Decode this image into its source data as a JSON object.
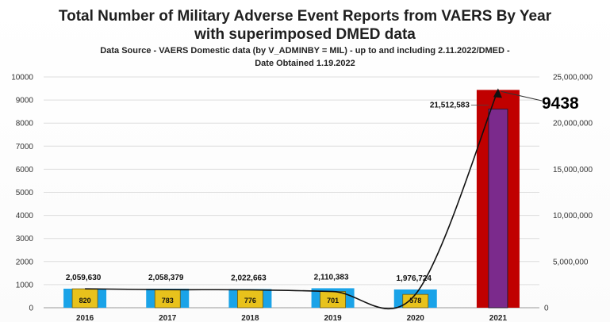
{
  "header": {
    "title_line1": "Total Number of Military Adverse Event Reports from VAERS By Year",
    "title_line2": "with superimposed DMED data",
    "subtitle_line1": "Data Source - VAERS Domestic data (by V_ADMINBY = MIL) - up to and including 2.11.2022/DMED -",
    "subtitle_line2": "Date Obtained 1.19.2022"
  },
  "colors": {
    "vaers_bar": "#1aa3e8",
    "vaers_label_box": "#e8c21c",
    "dmed_bar": "#7b2a8c",
    "highlight_box": "#c00000",
    "trend_line": "#111111"
  },
  "chart_data": {
    "type": "bar",
    "title": "Total Number of Military Adverse Event Reports from VAERS By Year with superimposed DMED data",
    "categories": [
      "2016",
      "2017",
      "2018",
      "2019",
      "2020",
      "2021"
    ],
    "y_left": {
      "min": 0,
      "max": 10000,
      "step": 1000,
      "ticks": [
        "0",
        "1000",
        "2000",
        "3000",
        "4000",
        "5000",
        "6000",
        "7000",
        "8000",
        "9000",
        "10000"
      ]
    },
    "y_right": {
      "min": 0,
      "max": 25000000,
      "step": 5000000,
      "ticks": [
        "0",
        "5,000,000",
        "10,000,000",
        "15,000,000",
        "20,000,000",
        "25,000,000"
      ]
    },
    "series": [
      {
        "name": "VAERS reports",
        "axis": "left",
        "values": [
          820,
          783,
          776,
          701,
          578,
          9438
        ],
        "labels": [
          "820",
          "783",
          "776",
          "701",
          "578",
          "9438"
        ]
      },
      {
        "name": "DMED",
        "axis": "right",
        "values": [
          2059630,
          2058379,
          2022663,
          2110383,
          1976724,
          21512583
        ],
        "labels": [
          "2,059,630",
          "2,058,379",
          "2,022,663",
          "2,110,383",
          "1,976,724",
          "21,512,583"
        ]
      }
    ],
    "grid": true
  }
}
